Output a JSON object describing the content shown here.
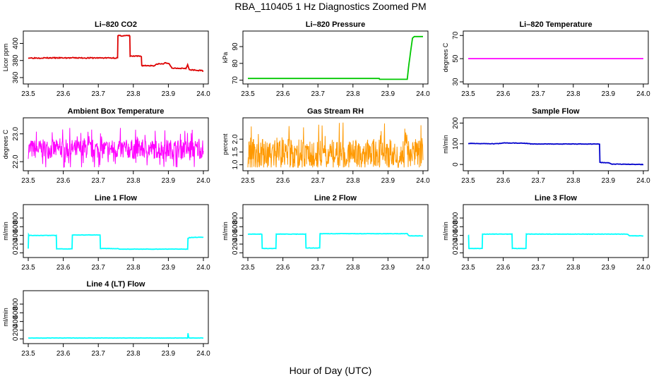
{
  "page": {
    "title": "RBA_110405  1 Hz Diagnostics Zoomed PM",
    "x_axis_label": "Hour of Day (UTC)"
  },
  "colors": {
    "red": "#dd0000",
    "green": "#00c800",
    "magenta": "#ff00ff",
    "orange": "#ff9900",
    "blue": "#0000cc",
    "cyan": "#00ffff",
    "axis": "#000000"
  },
  "chart_data": [
    {
      "id": "co2",
      "type": "line",
      "title": "Li–820 CO2",
      "ylabel": "Licor ppm",
      "color": "red",
      "noise": 0.6,
      "xlim": [
        23.5,
        24.0
      ],
      "ylim": [
        355,
        412
      ],
      "xticks": [
        "23.5",
        "23.6",
        "23.7",
        "23.8",
        "23.9",
        "24.0"
      ],
      "yticks": [
        {
          "v": 360,
          "l": "360"
        },
        {
          "v": 380,
          "l": "380"
        },
        {
          "v": 400,
          "l": "400"
        }
      ],
      "x": [
        23.5,
        23.755,
        23.756,
        23.79,
        23.791,
        23.823,
        23.824,
        23.86,
        23.87,
        23.885,
        23.89,
        23.9,
        23.91,
        23.95,
        23.955,
        23.958,
        23.96,
        24.0
      ],
      "y": [
        383,
        383,
        409,
        409,
        385,
        385,
        374,
        374,
        376,
        376,
        377,
        377,
        371,
        371,
        375,
        371,
        369,
        368
      ]
    },
    {
      "id": "pressure",
      "type": "line",
      "title": "Li–820 Pressure",
      "ylabel": "kPa",
      "color": "green",
      "noise": 0.0,
      "xlim": [
        23.5,
        24.0
      ],
      "ylim": [
        69,
        98
      ],
      "xticks": [
        "23.5",
        "23.6",
        "23.7",
        "23.8",
        "23.9",
        "24.0"
      ],
      "yticks": [
        {
          "v": 70,
          "l": "70"
        },
        {
          "v": 80,
          "l": "80"
        },
        {
          "v": 90,
          "l": "90"
        }
      ],
      "x": [
        23.5,
        23.875,
        23.876,
        23.955,
        23.96,
        23.97,
        23.975,
        24.0
      ],
      "y": [
        71,
        71,
        70.5,
        70.5,
        80,
        95,
        96,
        96
      ]
    },
    {
      "id": "temperature",
      "type": "line",
      "title": "Li–820 Temperature",
      "ylabel": "degrees C",
      "color": "magenta",
      "noise": 0.0,
      "xlim": [
        23.5,
        24.0
      ],
      "ylim": [
        30,
        72
      ],
      "xticks": [
        "23.5",
        "23.6",
        "23.7",
        "23.8",
        "23.9",
        "24.0"
      ],
      "yticks": [
        {
          "v": 30,
          "l": "30"
        },
        {
          "v": 50,
          "l": "50"
        },
        {
          "v": 70,
          "l": "70"
        }
      ],
      "x": [
        23.5,
        24.0
      ],
      "y": [
        50,
        50
      ]
    },
    {
      "id": "ambient",
      "type": "line",
      "title": "Ambient Box Temperature",
      "ylabel": "degrees C",
      "color": "magenta",
      "noise": 0.35,
      "mean": 22.45,
      "seed": 7,
      "xlim": [
        23.5,
        24.0
      ],
      "ylim": [
        21.75,
        23.5
      ],
      "xticks": [
        "23.5",
        "23.6",
        "23.7",
        "23.8",
        "23.9",
        "24.0"
      ],
      "yticks": [
        {
          "v": 22.0,
          "l": "22.0"
        },
        {
          "v": 23.0,
          "l": "23.0"
        }
      ],
      "x": [
        23.5,
        24.0
      ],
      "y": [
        22.45,
        22.45
      ]
    },
    {
      "id": "rh",
      "type": "line",
      "title": "Gas Stream RH",
      "ylabel": "percent",
      "color": "orange",
      "noise": 0.55,
      "mean": 1.45,
      "seed": 19,
      "xlim": [
        23.5,
        24.0
      ],
      "ylim": [
        0.85,
        2.75
      ],
      "xticks": [
        "23.5",
        "23.6",
        "23.7",
        "23.8",
        "23.9",
        "24.0"
      ],
      "yticks": [
        {
          "v": 1.0,
          "l": "1.0"
        },
        {
          "v": 1.5,
          "l": "1.5"
        },
        {
          "v": 2.0,
          "l": "2.0"
        }
      ],
      "x": [
        23.5,
        24.0
      ],
      "y": [
        1.45,
        1.45
      ]
    },
    {
      "id": "sample_flow",
      "type": "line",
      "title": "Sample Flow",
      "ylabel": "ml/min",
      "color": "blue",
      "noise": 1.0,
      "xlim": [
        23.5,
        24.0
      ],
      "ylim": [
        -20,
        215
      ],
      "xticks": [
        "23.5",
        "23.6",
        "23.7",
        "23.8",
        "23.9",
        "24.0"
      ],
      "yticks": [
        {
          "v": 0,
          "l": "0"
        },
        {
          "v": 100,
          "l": "100"
        },
        {
          "v": 200,
          "l": "200"
        }
      ],
      "x": [
        23.5,
        23.58,
        23.6,
        23.66,
        23.68,
        23.875,
        23.876,
        23.9,
        23.91,
        24.0
      ],
      "y": [
        102,
        100,
        104,
        103,
        99,
        99,
        10,
        8,
        2,
        0
      ]
    },
    {
      "id": "line1",
      "type": "line",
      "title": "Line 1 Flow",
      "ylabel": "ml/min",
      "color": "cyan",
      "noise": 4,
      "xlim": [
        23.5,
        24.0
      ],
      "ylim": [
        -60,
        1060
      ],
      "xticks": [
        "23.5",
        "23.6",
        "23.7",
        "23.8",
        "23.9",
        "24.0"
      ],
      "yticks": [
        {
          "v": 0,
          "l": "0"
        },
        {
          "v": 200,
          "l": "200"
        },
        {
          "v": 400,
          "l": "400"
        },
        {
          "v": 600,
          "l": "600"
        },
        {
          "v": 800,
          "l": "800"
        }
      ],
      "x": [
        23.5,
        23.501,
        23.502,
        23.58,
        23.581,
        23.625,
        23.626,
        23.705,
        23.706,
        23.755,
        23.76,
        23.955,
        23.956,
        23.96,
        24.0
      ],
      "y": [
        100,
        420,
        400,
        400,
        90,
        90,
        410,
        410,
        100,
        95,
        85,
        85,
        330,
        350,
        360
      ]
    },
    {
      "id": "line2",
      "type": "line",
      "title": "Line 2 Flow",
      "ylabel": "ml/min",
      "color": "cyan",
      "noise": 4,
      "xlim": [
        23.5,
        24.0
      ],
      "ylim": [
        -60,
        1060
      ],
      "xticks": [
        "23.5",
        "23.6",
        "23.7",
        "23.8",
        "23.9",
        "24.0"
      ],
      "yticks": [
        {
          "v": 0,
          "l": "0"
        },
        {
          "v": 200,
          "l": "200"
        },
        {
          "v": 400,
          "l": "400"
        },
        {
          "v": 600,
          "l": "600"
        },
        {
          "v": 800,
          "l": "800"
        }
      ],
      "x": [
        23.5,
        23.54,
        23.541,
        23.58,
        23.581,
        23.665,
        23.666,
        23.705,
        23.706,
        23.955,
        23.96,
        24.0
      ],
      "y": [
        430,
        430,
        100,
        100,
        430,
        430,
        110,
        110,
        440,
        440,
        390,
        390
      ]
    },
    {
      "id": "line3",
      "type": "line",
      "title": "Line 3 Flow",
      "ylabel": "ml/min",
      "color": "cyan",
      "noise": 4,
      "xlim": [
        23.5,
        24.0
      ],
      "ylim": [
        -60,
        1060
      ],
      "xticks": [
        "23.5",
        "23.6",
        "23.7",
        "23.8",
        "23.9",
        "24.0"
      ],
      "yticks": [
        {
          "v": 0,
          "l": "0"
        },
        {
          "v": 200,
          "l": "200"
        },
        {
          "v": 400,
          "l": "400"
        },
        {
          "v": 600,
          "l": "600"
        },
        {
          "v": 800,
          "l": "800"
        }
      ],
      "x": [
        23.5,
        23.501,
        23.502,
        23.54,
        23.541,
        23.625,
        23.626,
        23.665,
        23.666,
        23.955,
        23.96,
        24.0
      ],
      "y": [
        400,
        400,
        100,
        100,
        430,
        430,
        100,
        100,
        430,
        430,
        390,
        390
      ]
    },
    {
      "id": "line4",
      "type": "line",
      "title": "Line 4 (LT) Flow",
      "ylabel": "ml/min",
      "color": "cyan",
      "noise": 3,
      "xlim": [
        23.5,
        24.0
      ],
      "ylim": [
        -60,
        1060
      ],
      "xticks": [
        "23.5",
        "23.6",
        "23.7",
        "23.8",
        "23.9",
        "24.0"
      ],
      "yticks": [
        {
          "v": 0,
          "l": "0"
        },
        {
          "v": 200,
          "l": "200"
        },
        {
          "v": 400,
          "l": "400"
        },
        {
          "v": 600,
          "l": "600"
        },
        {
          "v": 800,
          "l": "800"
        }
      ],
      "x": [
        23.5,
        23.955,
        23.956,
        23.958,
        23.96,
        24.0
      ],
      "y": [
        20,
        20,
        130,
        30,
        20,
        20
      ]
    }
  ]
}
